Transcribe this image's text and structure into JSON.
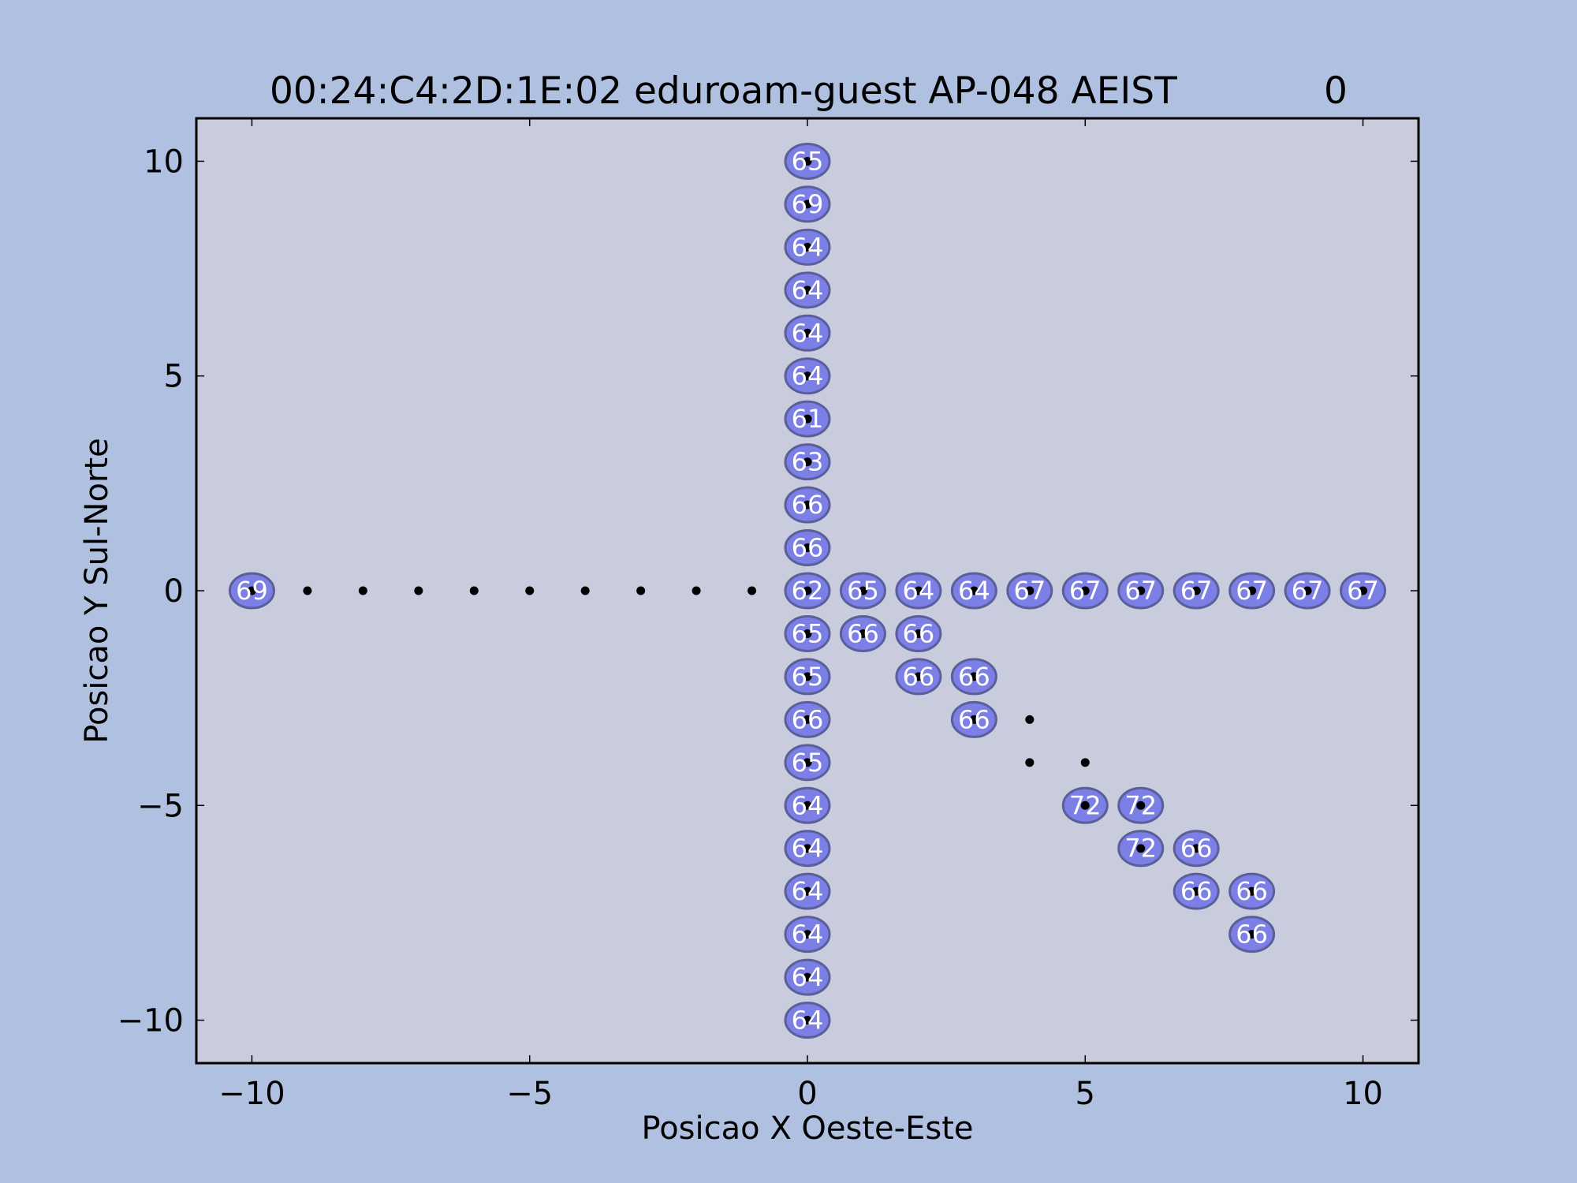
{
  "colors": {
    "figure_background": "#b0c0e0",
    "plot_background": "#c8ccdc",
    "marker_fill": "#7b7fe6",
    "marker_stroke": "#5a5f9a",
    "point_color": "#000000",
    "label_color": "#ffffff"
  },
  "chart_data": {
    "type": "scatter",
    "title": "00:24:C4:2D:1E:02 eduroam-guest AP-048 AEIST",
    "title_value": "0",
    "xlabel": "Posicao X Oeste-Este",
    "ylabel": "Posicao Y Sul-Norte",
    "xlim": [
      -11,
      11
    ],
    "ylim": [
      -11,
      11
    ],
    "xticks": [
      {
        "value": -10,
        "label": "−10"
      },
      {
        "value": -5,
        "label": "−5"
      },
      {
        "value": 0,
        "label": "0"
      },
      {
        "value": 5,
        "label": "5"
      },
      {
        "value": 10,
        "label": "10"
      }
    ],
    "yticks": [
      {
        "value": 10,
        "label": "10"
      },
      {
        "value": 5,
        "label": "5"
      },
      {
        "value": 0,
        "label": "0"
      },
      {
        "value": -5,
        "label": "−5"
      },
      {
        "value": -10,
        "label": "−10"
      }
    ],
    "grid": false,
    "points": [
      {
        "x": -10,
        "y": 0,
        "label": "69"
      },
      {
        "x": -9,
        "y": 0,
        "label": null
      },
      {
        "x": -8,
        "y": 0,
        "label": null
      },
      {
        "x": -7,
        "y": 0,
        "label": null
      },
      {
        "x": -6,
        "y": 0,
        "label": null
      },
      {
        "x": -5,
        "y": 0,
        "label": null
      },
      {
        "x": -4,
        "y": 0,
        "label": null
      },
      {
        "x": -3,
        "y": 0,
        "label": null
      },
      {
        "x": -2,
        "y": 0,
        "label": null
      },
      {
        "x": -1,
        "y": 0,
        "label": null
      },
      {
        "x": 0,
        "y": 10,
        "label": "65"
      },
      {
        "x": 0,
        "y": 9,
        "label": "69"
      },
      {
        "x": 0,
        "y": 8,
        "label": "64"
      },
      {
        "x": 0,
        "y": 7,
        "label": "64"
      },
      {
        "x": 0,
        "y": 6,
        "label": "64"
      },
      {
        "x": 0,
        "y": 5,
        "label": "64"
      },
      {
        "x": 0,
        "y": 4,
        "label": "61"
      },
      {
        "x": 0,
        "y": 3,
        "label": "63"
      },
      {
        "x": 0,
        "y": 2,
        "label": "66"
      },
      {
        "x": 0,
        "y": 1,
        "label": "66"
      },
      {
        "x": 0,
        "y": 0,
        "label": "62"
      },
      {
        "x": 0,
        "y": -1,
        "label": "65"
      },
      {
        "x": 0,
        "y": -2,
        "label": "65"
      },
      {
        "x": 0,
        "y": -3,
        "label": "66"
      },
      {
        "x": 0,
        "y": -4,
        "label": "65"
      },
      {
        "x": 0,
        "y": -5,
        "label": "64"
      },
      {
        "x": 0,
        "y": -6,
        "label": "64"
      },
      {
        "x": 0,
        "y": -7,
        "label": "64"
      },
      {
        "x": 0,
        "y": -8,
        "label": "64"
      },
      {
        "x": 0,
        "y": -9,
        "label": "64"
      },
      {
        "x": 0,
        "y": -10,
        "label": "64"
      },
      {
        "x": 1,
        "y": 0,
        "label": "65"
      },
      {
        "x": 2,
        "y": 0,
        "label": "64"
      },
      {
        "x": 3,
        "y": 0,
        "label": "64"
      },
      {
        "x": 4,
        "y": 0,
        "label": "67"
      },
      {
        "x": 5,
        "y": 0,
        "label": "67"
      },
      {
        "x": 6,
        "y": 0,
        "label": "67"
      },
      {
        "x": 7,
        "y": 0,
        "label": "67"
      },
      {
        "x": 8,
        "y": 0,
        "label": "67"
      },
      {
        "x": 9,
        "y": 0,
        "label": "67"
      },
      {
        "x": 10,
        "y": 0,
        "label": "67"
      },
      {
        "x": 1,
        "y": -1,
        "label": "66"
      },
      {
        "x": 2,
        "y": -1,
        "label": "66"
      },
      {
        "x": 2,
        "y": -2,
        "label": "66"
      },
      {
        "x": 3,
        "y": -2,
        "label": "66"
      },
      {
        "x": 3,
        "y": -3,
        "label": "66"
      },
      {
        "x": 4,
        "y": -3,
        "label": null
      },
      {
        "x": 4,
        "y": -4,
        "label": null
      },
      {
        "x": 5,
        "y": -4,
        "label": null
      },
      {
        "x": 5,
        "y": -5,
        "label": "72"
      },
      {
        "x": 6,
        "y": -5,
        "label": "72"
      },
      {
        "x": 6,
        "y": -6,
        "label": "72"
      },
      {
        "x": 7,
        "y": -6,
        "label": "66"
      },
      {
        "x": 7,
        "y": -7,
        "label": "66"
      },
      {
        "x": 8,
        "y": -7,
        "label": "66"
      },
      {
        "x": 8,
        "y": -8,
        "label": "66"
      }
    ]
  }
}
